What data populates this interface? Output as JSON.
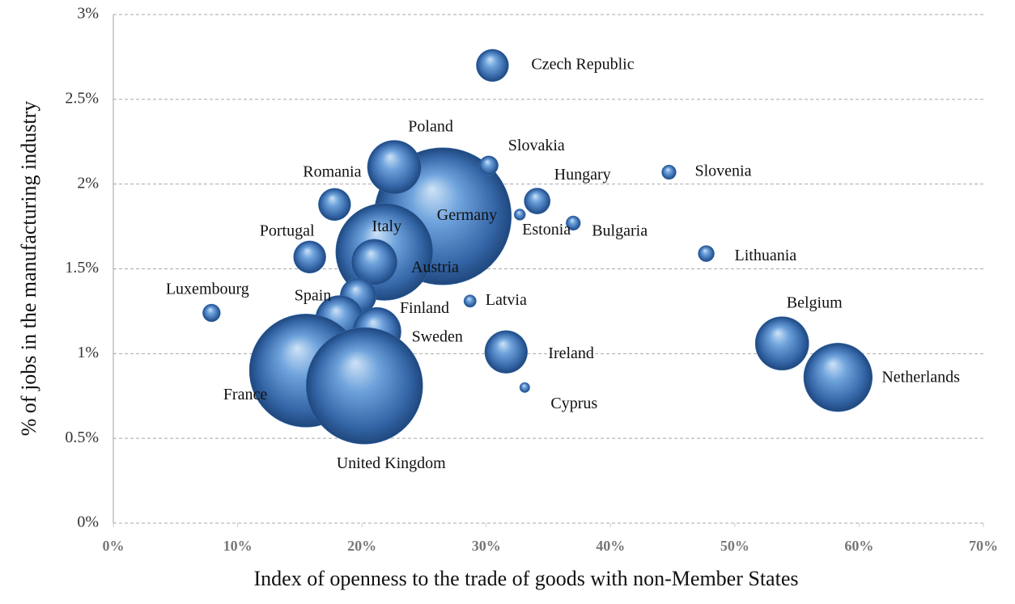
{
  "chart_data": {
    "type": "bubble",
    "x_label": "Index of openness to the trade of goods with non-Member States",
    "y_label": "% of jobs in the manufacturing industry",
    "color": "#3f79c0",
    "grid": true,
    "xlim": [
      0,
      70
    ],
    "ylim": [
      0,
      3
    ],
    "xticks": [
      {
        "value": 0,
        "label": "0%"
      },
      {
        "value": 10,
        "label": "10%"
      },
      {
        "value": 20,
        "label": "20%"
      },
      {
        "value": 30,
        "label": "30%"
      },
      {
        "value": 40,
        "label": "40%"
      },
      {
        "value": 50,
        "label": "50%"
      },
      {
        "value": 60,
        "label": "60%"
      },
      {
        "value": 70,
        "label": "70%"
      }
    ],
    "yticks": [
      {
        "value": 0,
        "label": "0%"
      },
      {
        "value": 0.5,
        "label": "0.5%"
      },
      {
        "value": 1,
        "label": "1%"
      },
      {
        "value": 1.5,
        "label": "1.5%"
      },
      {
        "value": 2,
        "label": "2%"
      },
      {
        "value": 2.5,
        "label": "2.5%"
      },
      {
        "value": 3,
        "label": "3%"
      }
    ],
    "labels": [
      "Germany",
      "Italy",
      "Austria",
      "Poland",
      "Czech Republic",
      "Slovakia",
      "Slovenia",
      "Romania",
      "Hungary",
      "Estonia",
      "Bulgaria",
      "Portugal",
      "Lithuania",
      "Luxembourg",
      "Spain",
      "Latvia",
      "Finland",
      "Sweden",
      "Ireland",
      "Belgium",
      "Netherlands",
      "France",
      "United Kingdom",
      "Cyprus"
    ],
    "x": [
      26.5,
      21.8,
      21.0,
      22.6,
      30.5,
      30.2,
      44.7,
      17.8,
      34.1,
      32.7,
      37.0,
      15.8,
      47.7,
      7.9,
      19.7,
      28.7,
      18.2,
      21.2,
      31.6,
      53.8,
      58.3,
      15.5,
      20.2,
      33.1
    ],
    "values": [
      1.81,
      1.6,
      1.54,
      2.1,
      2.7,
      2.11,
      2.07,
      1.88,
      1.9,
      1.82,
      1.77,
      1.57,
      1.59,
      1.24,
      1.34,
      1.31,
      1.2,
      1.13,
      1.01,
      1.06,
      0.86,
      0.9,
      0.81,
      0.8
    ],
    "sizes": [
      72,
      36,
      8,
      11,
      4,
      1.4,
      0.8,
      4,
      2.6,
      0.5,
      0.8,
      4,
      1,
      1.2,
      5,
      0.6,
      9,
      9,
      7,
      11,
      18,
      49,
      52,
      0.4
    ]
  }
}
